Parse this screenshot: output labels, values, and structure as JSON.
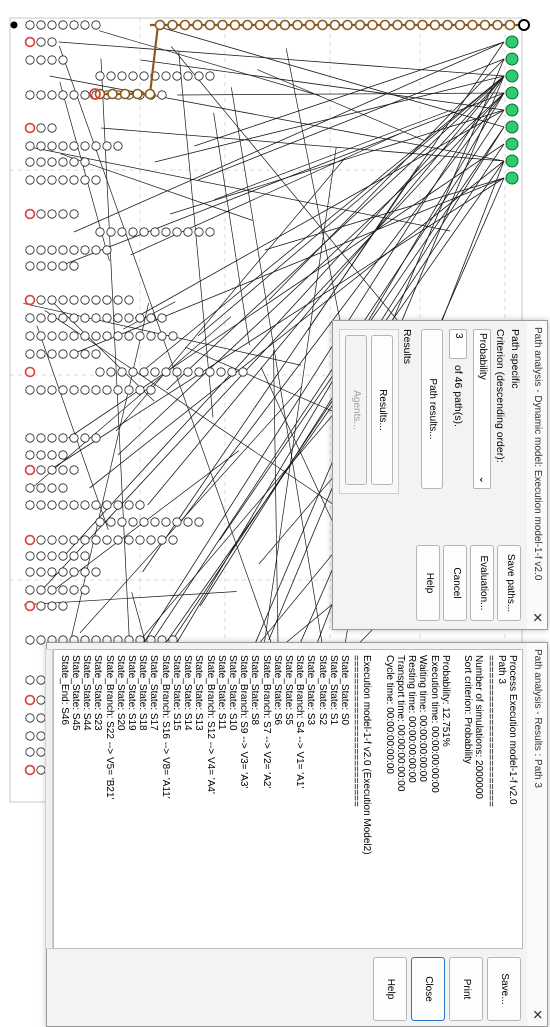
{
  "path_specific_dialog": {
    "title": "Path analysis - Dynamic model: Execution model-1-f v2.0",
    "close_glyph": "✕",
    "section_label": "Path specific",
    "criterion_label": "Criterion (descending order):",
    "criterion_value": "Probability",
    "path_number": "3",
    "of_paths_label": "of 46 path(s).",
    "path_results_button": "Path results...",
    "results_section_label": "Results",
    "results_button": "Results...",
    "agents_button": "Agents...",
    "save_paths_button": "Save paths...",
    "evaluation_button": "Evaluation...",
    "cancel_button": "Cancel",
    "help_button": "Help"
  },
  "results_dialog": {
    "title": "Path analysis - Results : Path 3",
    "close_glyph": "✕",
    "lines": [
      "Process Execution model-1-f v2.0",
      "Path 3",
      "==========================",
      "Number of simulations: 2000000",
      "Sort criterion: Probability",
      "",
      "Probability:  12.751%",
      "Execution time:  00:00:00:00:00",
      "Waiting time:  00:00:00:00:00",
      "Resting time:  00:00:00:00:00",
      "Transport time:  00:00:00:00:00",
      "Cycle time:  00:00:00:00:00",
      "",
      "Execution model-1-f v2.0 (Execution Model2)",
      "==========================",
      "State_State: S0",
      "State_State: S1",
      "State_State: S2",
      "State_State: S3",
      "State_Branch: S4 --> V1= 'A1'",
      "State_State: S5",
      "State_State: S6",
      "State_Branch: S7 --> V2= 'A2'",
      "State_State: S8",
      "State_Branch: S9 --> V3= 'A3'",
      "State_State: S10",
      "State_State: S11",
      "State_Branch: S12 --> V4= 'A4'",
      "State_State: S13",
      "State_State: S14",
      "State_State: S15",
      "State_Branch: S16 --> V8= 'A11'",
      "State_State: S17",
      "State_State: S18",
      "State_State: S19",
      "State_State: S20",
      "State_Branch: S22 --> V5= 'B21'",
      "State_State: S23",
      "State_State: S44",
      "State_State: S45",
      "State_End: S46"
    ],
    "save_button": "Save...",
    "print_button": "Print",
    "close_button": "Close",
    "help_button": "Help"
  },
  "colors": {
    "accent": "#2a72c4",
    "highlight_path": "#8b5a1e",
    "end_state": "#2ecc71",
    "branch_state": "#e0413a",
    "node_fill": "#ffffff",
    "edge": "#1a1a1a"
  }
}
